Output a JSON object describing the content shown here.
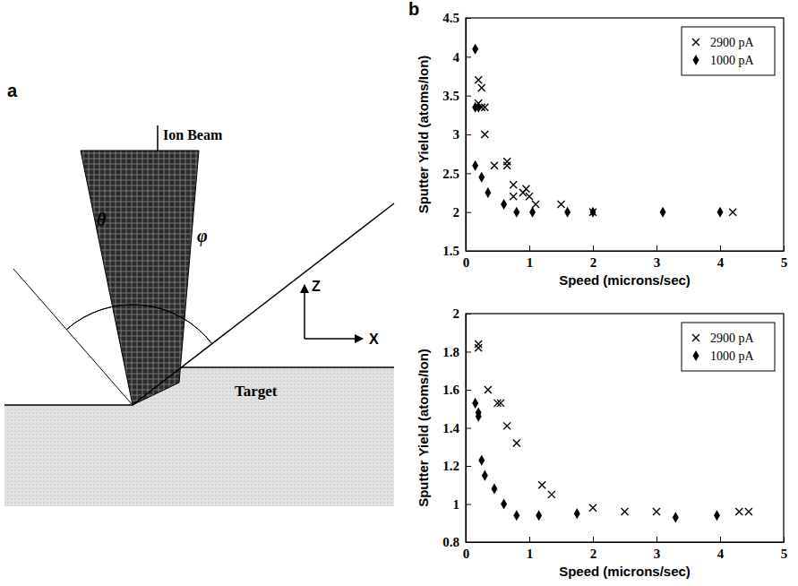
{
  "diagram": {
    "letter": "a",
    "ion_beam": "Ion Beam",
    "theta": "θ",
    "phi": "φ",
    "z_axis": "Z",
    "x_axis": "X",
    "target": "Target"
  },
  "charts_letter": "b",
  "chart_data": [
    {
      "type": "scatter",
      "x_label": "Speed (microns/sec)",
      "y_label": "Sputter Yield (atoms/Ion)",
      "xlim": [
        0,
        5
      ],
      "xticks": [
        0,
        1,
        2,
        3,
        4,
        5
      ],
      "ylim": [
        1.5,
        4.5
      ],
      "yticks": [
        1.5,
        2,
        2.5,
        3,
        3.5,
        4,
        4.5
      ],
      "legend": "top-right",
      "series": [
        {
          "name": "2900 pA",
          "color": "#000000",
          "marker": "x",
          "x": [
            0.2,
            0.25,
            0.2,
            0.3,
            0.25,
            0.3,
            0.45,
            0.65,
            0.65,
            0.75,
            0.75,
            0.9,
            0.95,
            1.0,
            1.1,
            1.5,
            2.0,
            4.2
          ],
          "values": [
            3.7,
            3.6,
            3.4,
            3.35,
            3.35,
            3.0,
            2.6,
            2.65,
            2.6,
            2.35,
            2.2,
            2.25,
            2.3,
            2.2,
            2.1,
            2.1,
            2.0,
            2.0
          ]
        },
        {
          "name": "1000 pA",
          "color": "#000000",
          "marker": "diamond",
          "x": [
            0.15,
            0.15,
            0.2,
            0.15,
            0.25,
            0.35,
            0.6,
            0.8,
            1.05,
            1.6,
            2.0,
            3.1,
            4.0
          ],
          "values": [
            4.1,
            3.35,
            3.35,
            2.6,
            2.45,
            2.25,
            2.1,
            2.0,
            2.0,
            2.0,
            2.0,
            2.0,
            2.0
          ]
        }
      ]
    },
    {
      "type": "scatter",
      "x_label": "Speed (microns/sec)",
      "y_label": "Sputter Yield (atoms/Ion)",
      "xlim": [
        0,
        5
      ],
      "xticks": [
        0,
        1,
        2,
        3,
        4,
        5
      ],
      "ylim": [
        0.8,
        2
      ],
      "yticks": [
        0.8,
        1,
        1.2,
        1.4,
        1.6,
        1.8,
        2
      ],
      "legend": "top-right",
      "series": [
        {
          "name": "2900 pA",
          "color": "#000000",
          "marker": "x",
          "x": [
            0.2,
            0.2,
            0.35,
            0.5,
            0.55,
            0.65,
            0.8,
            1.2,
            1.35,
            2.0,
            2.5,
            3.0,
            4.3,
            4.45
          ],
          "values": [
            1.84,
            1.82,
            1.6,
            1.53,
            1.53,
            1.41,
            1.32,
            1.1,
            1.05,
            0.98,
            0.96,
            0.96,
            0.96,
            0.96
          ]
        },
        {
          "name": "1000 pA",
          "color": "#000000",
          "marker": "diamond",
          "x": [
            0.15,
            0.2,
            0.2,
            0.25,
            0.3,
            0.45,
            0.6,
            0.8,
            1.15,
            1.75,
            3.3,
            3.95
          ],
          "values": [
            1.53,
            1.48,
            1.46,
            1.23,
            1.15,
            1.08,
            1.0,
            0.94,
            0.94,
            0.95,
            0.93,
            0.94
          ]
        }
      ]
    }
  ]
}
